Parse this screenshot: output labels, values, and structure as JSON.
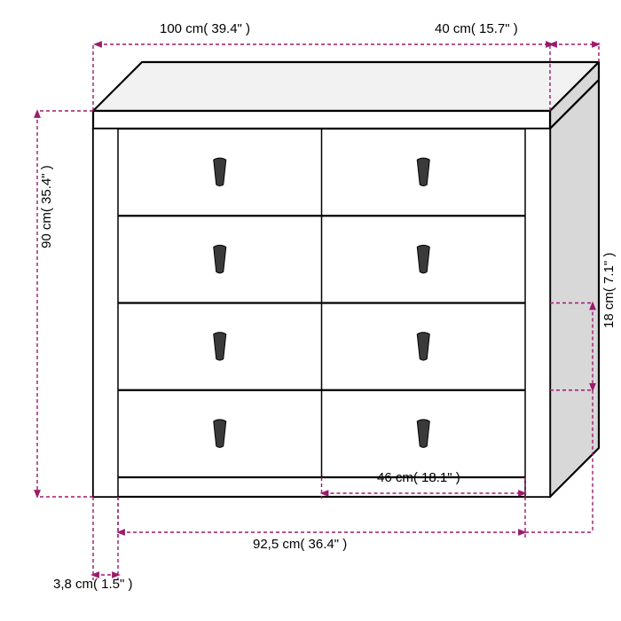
{
  "colors": {
    "dim_line": "#9b1b6a",
    "outline": "#000000",
    "shading_light": "#f2f2f2",
    "shading_med": "#d8d8d8",
    "handle": "#3a3a3a",
    "bg": "#ffffff"
  },
  "stroke": {
    "outline_w": 2.2,
    "thin_w": 1.5,
    "dim_w": 1.4,
    "dim_dash": "4 3"
  },
  "dimensions": {
    "width_top": "100 cm( 39.4\" )",
    "depth_top": "40 cm( 15.7\" )",
    "height_left": "90 cm( 35.4\" )",
    "drawer_h_right": "18 cm( 7.1\" )",
    "drawer_w_bottom": "46 cm( 18.1\" )",
    "inner_w_bottom": "92,5 cm( 36.4\" )",
    "leg_bottom": "3,8 cm( 1.5\" )"
  },
  "font": {
    "size": 15
  }
}
